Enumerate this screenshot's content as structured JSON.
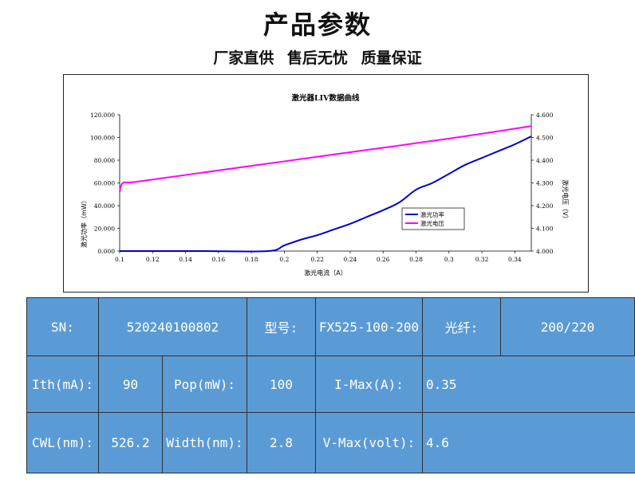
{
  "header": {
    "title": "产品参数",
    "subtitle": "厂家直供 售后无忧 质量保证"
  },
  "chart_data": {
    "type": "line",
    "title": "激光器LIV数据曲线",
    "xlabel": "激光电流（A）",
    "ylabel_left": "激光功率（mW）",
    "ylabel_right": "激光电压（V）",
    "xlim": [
      0.1,
      0.35
    ],
    "ylim_left": [
      0,
      120
    ],
    "ylim_right": [
      4.0,
      4.6
    ],
    "x_ticks": [
      "0.1",
      "0.12",
      "0.14",
      "0.16",
      "0.18",
      "0.2",
      "0.22",
      "0.24",
      "0.26",
      "0.28",
      "0.3",
      "0.32",
      "0.34"
    ],
    "y_left_ticks": [
      "0.000",
      "20.000",
      "40.000",
      "60.000",
      "80.000",
      "100.000",
      "120.000"
    ],
    "y_right_ticks": [
      "4.000",
      "4.100",
      "4.200",
      "4.300",
      "4.400",
      "4.500",
      "4.600"
    ],
    "legend_position": "right",
    "grid": false,
    "series": [
      {
        "name": "激光功率",
        "axis": "left",
        "color": "#0000cc",
        "x": [
          0.1,
          0.15,
          0.19,
          0.2,
          0.21,
          0.22,
          0.23,
          0.24,
          0.25,
          0.26,
          0.27,
          0.28,
          0.29,
          0.3,
          0.31,
          0.32,
          0.33,
          0.34,
          0.35
        ],
        "y": [
          0,
          0,
          0,
          5,
          10,
          14,
          19,
          24,
          30,
          36,
          43,
          54,
          60,
          68,
          76,
          82,
          88,
          94,
          101
        ]
      },
      {
        "name": "激光电压",
        "axis": "right",
        "color": "#ff00ff",
        "x": [
          0.1,
          0.102,
          0.11,
          0.15,
          0.2,
          0.25,
          0.3,
          0.35
        ],
        "y": [
          4.26,
          4.3,
          4.305,
          4.345,
          4.395,
          4.445,
          4.495,
          4.55
        ]
      }
    ]
  },
  "specs": {
    "sn_label": "SN:",
    "sn_value": "520240100802",
    "model_label": "型号:",
    "model_value": "FX525-100-200",
    "fiber_label": "光纤:",
    "fiber_value": "200/220",
    "ith_label": "Ith(mA):",
    "ith_value": "90",
    "pop_label": "Pop(mW):",
    "pop_value": "100",
    "imax_label": "I-Max(A):",
    "imax_value": "0.35",
    "cwl_label": "CWL(nm):",
    "cwl_value": "526.2",
    "width_label": "Width(nm):",
    "width_value": "2.8",
    "vmax_label": "V-Max(volt):",
    "vmax_value": "4.6"
  }
}
